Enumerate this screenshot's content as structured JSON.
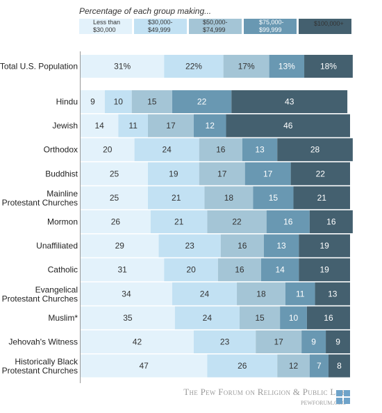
{
  "chart_data": {
    "type": "bar",
    "orientation": "horizontal",
    "stacked": true,
    "legend_title": "Percentage of each group making...",
    "legend_placement": "top",
    "grid": false,
    "xlim": [
      0,
      100
    ],
    "series": [
      {
        "name": "Less than $30,000",
        "label_lines": [
          "Less than",
          "$30,000"
        ],
        "color": "#e3f2fb"
      },
      {
        "name": "$30,000-$49,999",
        "label_lines": [
          "$30,000-",
          "$49,999"
        ],
        "color": "#c2e1f3"
      },
      {
        "name": "$50,000-$74,999",
        "label_lines": [
          "$50,000-",
          "$74,999"
        ],
        "color": "#a4c5d6"
      },
      {
        "name": "$75,000-$99,999",
        "label_lines": [
          "$75,000-",
          "$99,999"
        ],
        "color": "#6998b2"
      },
      {
        "name": "$100,000+",
        "label_lines": [
          "$100,000+"
        ],
        "color": "#44606f"
      }
    ],
    "total": {
      "category": "Total U.S. Population",
      "label_lines": [
        "Total U.S. Population"
      ],
      "values": [
        31,
        22,
        17,
        13,
        18
      ],
      "labels": [
        "31%",
        "22%",
        "17%",
        "13%",
        "18%"
      ]
    },
    "categories": [
      "Hindu",
      "Jewish",
      "Orthodox",
      "Buddhist",
      "Mainline Protestant Churches",
      "Mormon",
      "Unaffiliated",
      "Catholic",
      "Evangelical Protestant Churches",
      "Muslim*",
      "Jehovah's Witness",
      "Historically Black Protestant Churches"
    ],
    "category_lines": [
      [
        "Hindu"
      ],
      [
        "Jewish"
      ],
      [
        "Orthodox"
      ],
      [
        "Buddhist"
      ],
      [
        "Mainline",
        "Protestant Churches"
      ],
      [
        "Mormon"
      ],
      [
        "Unaffiliated"
      ],
      [
        "Catholic"
      ],
      [
        "Evangelical",
        "Protestant Churches"
      ],
      [
        "Muslim*"
      ],
      [
        "Jehovah's Witness"
      ],
      [
        "Historically Black",
        "Protestant Churches"
      ]
    ],
    "values": [
      [
        9,
        10,
        15,
        22,
        43
      ],
      [
        14,
        11,
        17,
        12,
        46
      ],
      [
        20,
        24,
        16,
        13,
        28
      ],
      [
        25,
        19,
        17,
        17,
        22
      ],
      [
        25,
        21,
        18,
        15,
        21
      ],
      [
        26,
        21,
        22,
        16,
        16
      ],
      [
        29,
        23,
        16,
        13,
        19
      ],
      [
        31,
        20,
        16,
        14,
        19
      ],
      [
        34,
        24,
        18,
        11,
        13
      ],
      [
        35,
        24,
        15,
        10,
        16
      ],
      [
        42,
        23,
        17,
        9,
        9
      ],
      [
        47,
        26,
        12,
        7,
        8
      ]
    ],
    "value_text_colors": [
      "#333333",
      "#333333",
      "#333333",
      "#ffffff",
      "#ffffff"
    ]
  },
  "footer": {
    "source": "The Pew Forum on Religion & Public Life",
    "url": "pewforum.org"
  }
}
